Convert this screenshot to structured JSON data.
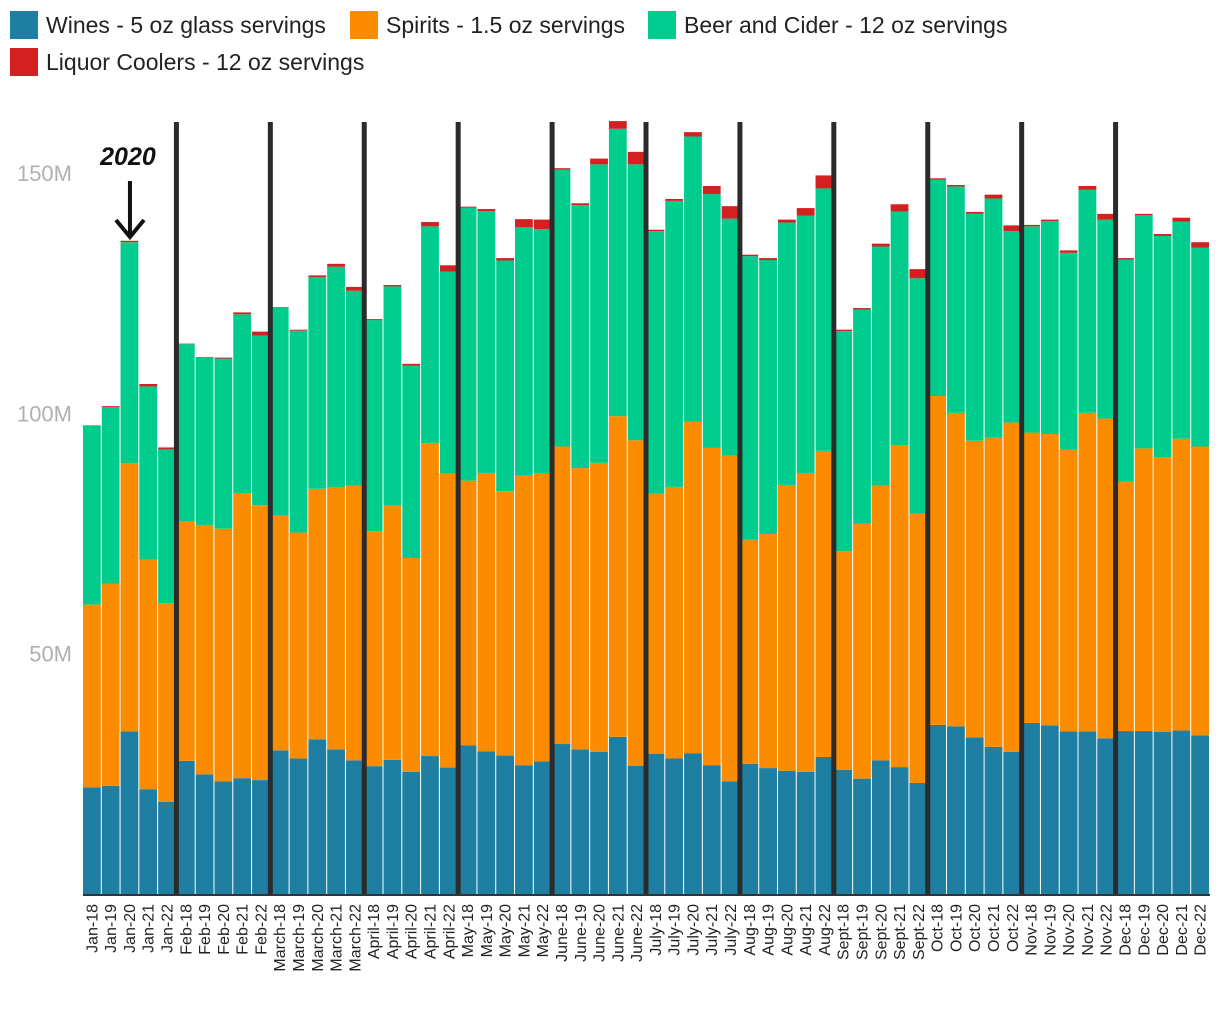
{
  "chart_data": {
    "type": "bar",
    "stacked": true,
    "categories": [
      "Jan-18",
      "Jan-19",
      "Jan-20",
      "Jan-21",
      "Jan-22",
      "Feb-18",
      "Feb-19",
      "Feb-20",
      "Feb-21",
      "Feb-22",
      "March-18",
      "March-19",
      "March-20",
      "March-21",
      "March-22",
      "April-18",
      "April-19",
      "April-20",
      "April-21",
      "April-22",
      "May-18",
      "May-19",
      "May-20",
      "May-21",
      "May-22",
      "June-18",
      "June-19",
      "June-20",
      "June-21",
      "June-22",
      "July-18",
      "July-19",
      "July-20",
      "July-21",
      "July-22",
      "Aug-18",
      "Aug-19",
      "Aug-20",
      "Aug-21",
      "Aug-22",
      "Sept-18",
      "Sept-19",
      "Sept-20",
      "Sept-21",
      "Sept-22",
      "Oct-18",
      "Oct-19",
      "Oct-20",
      "Oct-21",
      "Oct-22",
      "Nov-18",
      "Nov-19",
      "Nov-20",
      "Nov-21",
      "Nov-22",
      "Dec-18",
      "Dec-19",
      "Dec-20",
      "Dec-21",
      "Dec-22"
    ],
    "x_tick_labels": [
      "Jan-18",
      "Jan-19",
      "Jan-20",
      "Jan-21",
      "Jan-22",
      "Feb-18",
      "Feb-19",
      "Feb-20",
      "Feb-21",
      "Feb-22",
      "March-18",
      "March-19",
      "March-20",
      "March-21",
      "March-22",
      "April-18",
      "April-19",
      "April-20",
      "April-21",
      "April-22",
      "May-18",
      "May-19",
      "May-20",
      "May-21",
      "May-22",
      "June-18",
      "June-19",
      "June-20",
      "June-21",
      "June-22",
      "July-18",
      "July-19",
      "July-20",
      "July-21",
      "July-22",
      "Aug-18",
      "Aug-19",
      "Aug-20",
      "Aug-21",
      "Aug-22",
      "Sept-18",
      "Sept-19",
      "Sept-20",
      "Sept-21",
      "Sept-22",
      "Oct-18",
      "Oct-19",
      "Oct-20",
      "Oct-21",
      "Oct-22",
      "Nov-18",
      "Nov-19",
      "Nov-20",
      "Nov-21",
      "Nov-22",
      "Dec-18",
      "Dec-19",
      "Dec-20",
      "Dec-21",
      "Dec-22"
    ],
    "series": [
      {
        "name": "Wines - 5 oz glass servings",
        "color": "#1f7fa3",
        "values": [
          22.2,
          22.5,
          33.8,
          21.8,
          19.2,
          27.7,
          24.9,
          23.4,
          24.1,
          23.7,
          29.9,
          28.2,
          32.2,
          30.1,
          27.8,
          26.6,
          27.9,
          25.4,
          28.7,
          26.3,
          30.9,
          29.7,
          28.8,
          26.8,
          27.6,
          31.2,
          30.1,
          29.6,
          32.7,
          26.7,
          29.2,
          28.2,
          29.3,
          26.8,
          23.4,
          27.1,
          26.2,
          25.6,
          25.4,
          28.5,
          25.8,
          24.0,
          27.8,
          26.4,
          23.1,
          35.2,
          34.9,
          32.6,
          30.6,
          29.6,
          35.6,
          35.1,
          33.8,
          33.8,
          32.4,
          33.9,
          33.9,
          33.7,
          34.0,
          33.0
        ]
      },
      {
        "name": "Spirits - 1.5 oz servings",
        "color": "#fb8c00",
        "values": [
          38.0,
          42.1,
          55.8,
          47.8,
          41.3,
          49.9,
          51.8,
          52.6,
          59.3,
          57.2,
          48.8,
          47.0,
          52.1,
          54.5,
          57.2,
          48.9,
          52.9,
          44.5,
          65.1,
          61.2,
          55.1,
          57.9,
          55.0,
          60.2,
          60.0,
          61.9,
          58.5,
          60.1,
          66.7,
          67.7,
          54.1,
          56.5,
          69.0,
          66.0,
          67.8,
          46.6,
          48.7,
          59.5,
          62.2,
          63.7,
          45.5,
          53.0,
          57.2,
          67.0,
          56.0,
          68.4,
          65.2,
          61.7,
          64.3,
          68.5,
          60.4,
          60.6,
          58.6,
          66.3,
          66.5,
          51.9,
          58.8,
          57.2,
          60.7,
          60.1
        ]
      },
      {
        "name": "Beer and Cider - 12 oz servings",
        "color": "#00cc8e",
        "values": [
          37.2,
          36.7,
          46.0,
          36.0,
          32.0,
          36.8,
          34.9,
          35.4,
          37.2,
          35.3,
          43.3,
          42.0,
          44.0,
          45.9,
          40.5,
          43.9,
          45.6,
          40.0,
          45.1,
          42.0,
          56.8,
          54.5,
          48.0,
          51.7,
          50.7,
          57.6,
          54.7,
          62.1,
          59.8,
          57.4,
          54.6,
          59.5,
          59.3,
          52.8,
          49.3,
          59.0,
          57.0,
          54.6,
          53.5,
          54.6,
          45.8,
          44.6,
          49.7,
          48.6,
          49.0,
          45.0,
          47.1,
          47.2,
          49.8,
          39.8,
          42.9,
          44.3,
          41.0,
          46.4,
          41.4,
          46.2,
          48.5,
          46.0,
          45.2,
          41.4
        ]
      },
      {
        "name": "Liquor Coolers - 12 oz servings",
        "color": "#d32020",
        "values": [
          0.1,
          0.2,
          0.3,
          0.5,
          0.4,
          0.1,
          0.1,
          0.2,
          0.4,
          0.8,
          0.1,
          0.2,
          0.4,
          0.6,
          0.8,
          0.2,
          0.3,
          0.4,
          0.9,
          1.3,
          0.2,
          0.4,
          0.5,
          1.7,
          2.0,
          0.3,
          0.4,
          1.2,
          1.6,
          2.6,
          0.3,
          0.4,
          0.9,
          1.7,
          2.6,
          0.3,
          0.4,
          0.6,
          1.6,
          2.7,
          0.3,
          0.3,
          0.6,
          1.5,
          1.9,
          0.3,
          0.3,
          0.4,
          0.8,
          1.2,
          0.3,
          0.3,
          0.5,
          0.8,
          1.2,
          0.3,
          0.3,
          0.4,
          0.8,
          1.1
        ]
      }
    ],
    "ylim": [
      0,
      161
    ],
    "y_ticks": [
      50,
      100,
      150
    ],
    "y_tick_labels": [
      "50M",
      "100M",
      "150M"
    ],
    "unit": "millions of servings",
    "group_separators_after": [
      4,
      9,
      14,
      19,
      24,
      29,
      34,
      39,
      44,
      49,
      54
    ],
    "annotation": {
      "text": "2020",
      "category": "Jan-20"
    },
    "legend_position": "top-left",
    "grid": false,
    "title": "",
    "xlabel": "",
    "ylabel": ""
  }
}
